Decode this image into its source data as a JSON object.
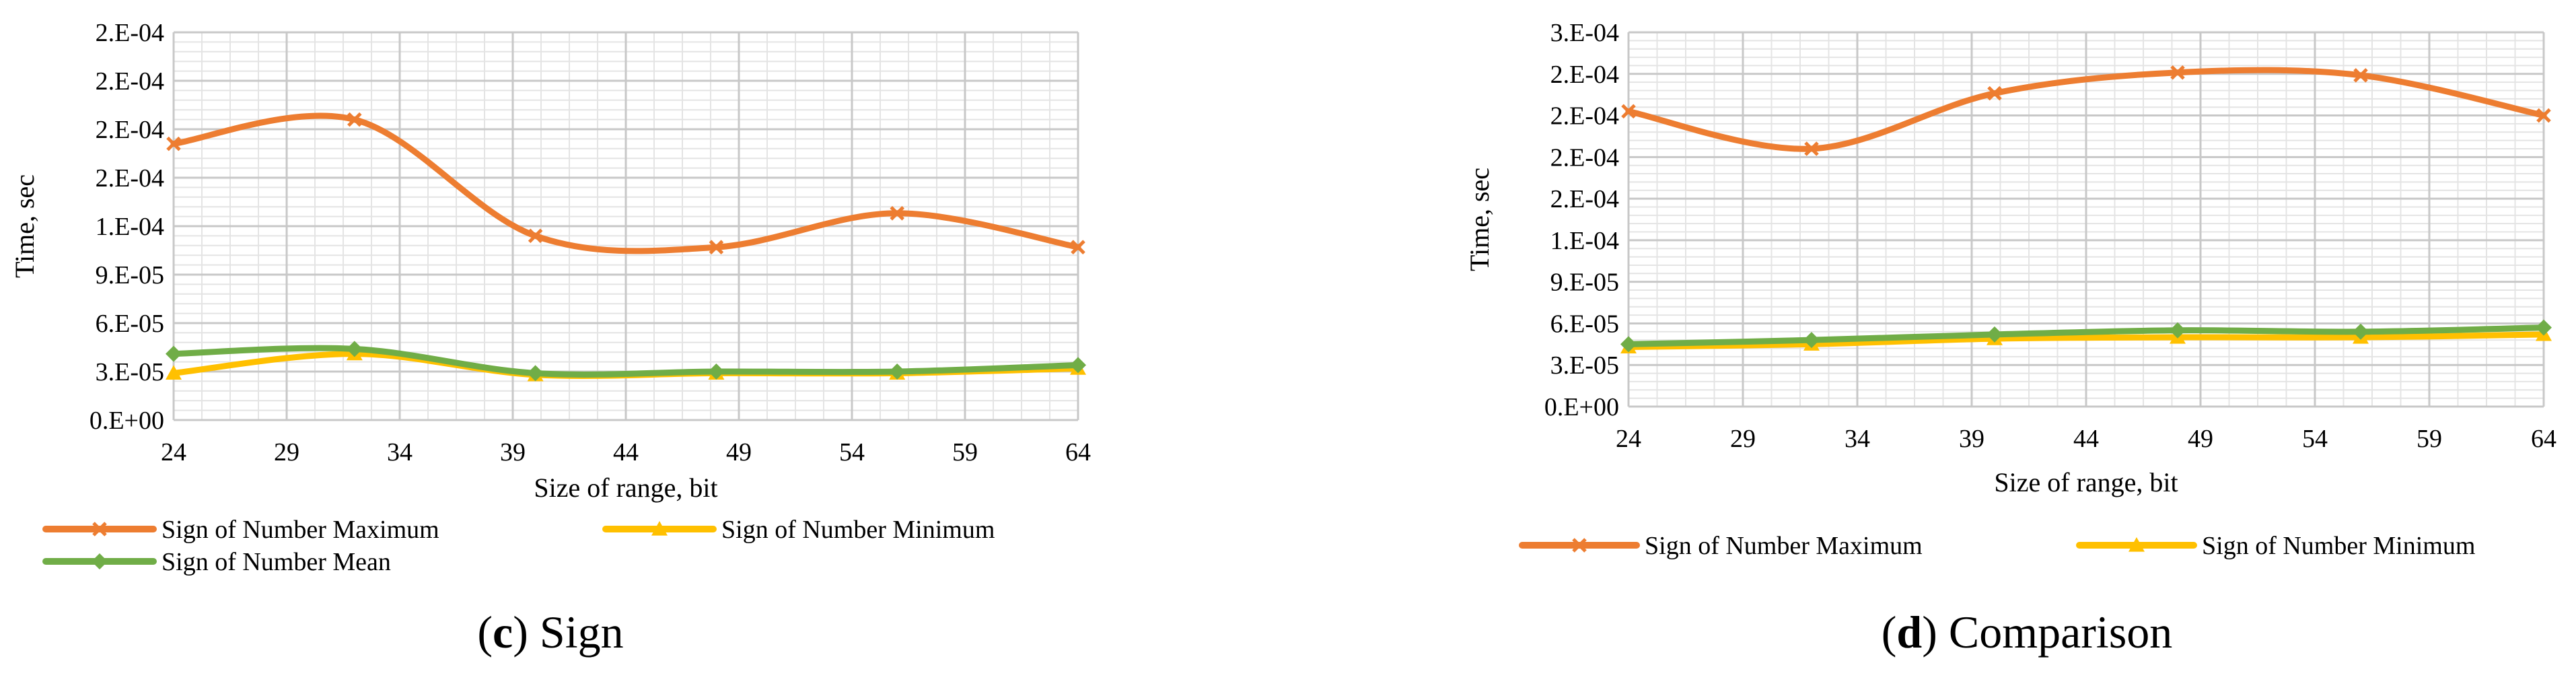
{
  "charts": [
    {
      "caption_letter": "c",
      "caption_rest": "Sign"
    },
    {
      "caption_letter": "d",
      "caption_rest": "Comparison"
    }
  ],
  "chart_data": [
    {
      "type": "line",
      "ylabel": "Time, sec",
      "xlabel": "Size of range, bit",
      "x_ticks": [
        "24",
        "29",
        "34",
        "39",
        "44",
        "49",
        "54",
        "59",
        "64"
      ],
      "y_ticks": [
        "0.E+00",
        "3.E-05",
        "6.E-05",
        "9.E-05",
        "1.E-04",
        "2.E-04",
        "2.E-04",
        "2.E-04",
        "2.E-04"
      ],
      "xlim": [
        24,
        64
      ],
      "ylim": [
        0,
        0.00024
      ],
      "grid": true,
      "legend_position": "bottom",
      "series": [
        {
          "name": "Sign of Number Maximum",
          "color": "#ED7D31",
          "marker": "x",
          "x": [
            24,
            32,
            40,
            48,
            56,
            64
          ],
          "y": [
            0.000171,
            0.000186,
            0.000114,
            0.000107,
            0.000128,
            0.000107
          ]
        },
        {
          "name": "Sign of Number Minimum",
          "color": "#FFC000",
          "marker": "triangle",
          "x": [
            24,
            32,
            40,
            48,
            56,
            64
          ],
          "y": [
            2.9e-05,
            4.1e-05,
            2.8e-05,
            2.9e-05,
            2.9e-05,
            3.2e-05
          ]
        },
        {
          "name": "Sign of Number Mean",
          "color": "#70AD47",
          "marker": "diamond",
          "x": [
            24,
            32,
            40,
            48,
            56,
            64
          ],
          "y": [
            4.1e-05,
            4.4e-05,
            2.9e-05,
            3e-05,
            3e-05,
            3.4e-05
          ]
        }
      ]
    },
    {
      "type": "line",
      "ylabel": "Time, sec",
      "xlabel": "Size of range, bit",
      "x_ticks": [
        "24",
        "29",
        "34",
        "39",
        "44",
        "49",
        "54",
        "59",
        "64"
      ],
      "y_ticks": [
        "0.E+00",
        "3.E-05",
        "6.E-05",
        "9.E-05",
        "1.E-04",
        "2.E-04",
        "2.E-04",
        "2.E-04",
        "2.E-04",
        "3.E-04"
      ],
      "xlim": [
        24,
        64
      ],
      "ylim": [
        0,
        0.00027
      ],
      "grid": true,
      "legend_position": "bottom",
      "series": [
        {
          "name": "Sign of Number Maximum",
          "color": "#ED7D31",
          "marker": "x",
          "x": [
            24,
            32,
            40,
            48,
            56,
            64
          ],
          "y": [
            0.000213,
            0.000186,
            0.000226,
            0.000241,
            0.000239,
            0.00021
          ]
        },
        {
          "name": "Sign of Number Minimum",
          "color": "#FFC000",
          "marker": "triangle",
          "x": [
            24,
            32,
            40,
            48,
            56,
            64
          ],
          "y": [
            4.3e-05,
            4.5e-05,
            4.9e-05,
            5e-05,
            5e-05,
            5.2e-05
          ]
        },
        {
          "name": "Sign of Number Mean",
          "color": "#70AD47",
          "marker": "diamond",
          "x": [
            24,
            32,
            40,
            48,
            56,
            64
          ],
          "y": [
            4.5e-05,
            4.8e-05,
            5.2e-05,
            5.5e-05,
            5.4e-05,
            5.7e-05
          ]
        }
      ]
    }
  ]
}
